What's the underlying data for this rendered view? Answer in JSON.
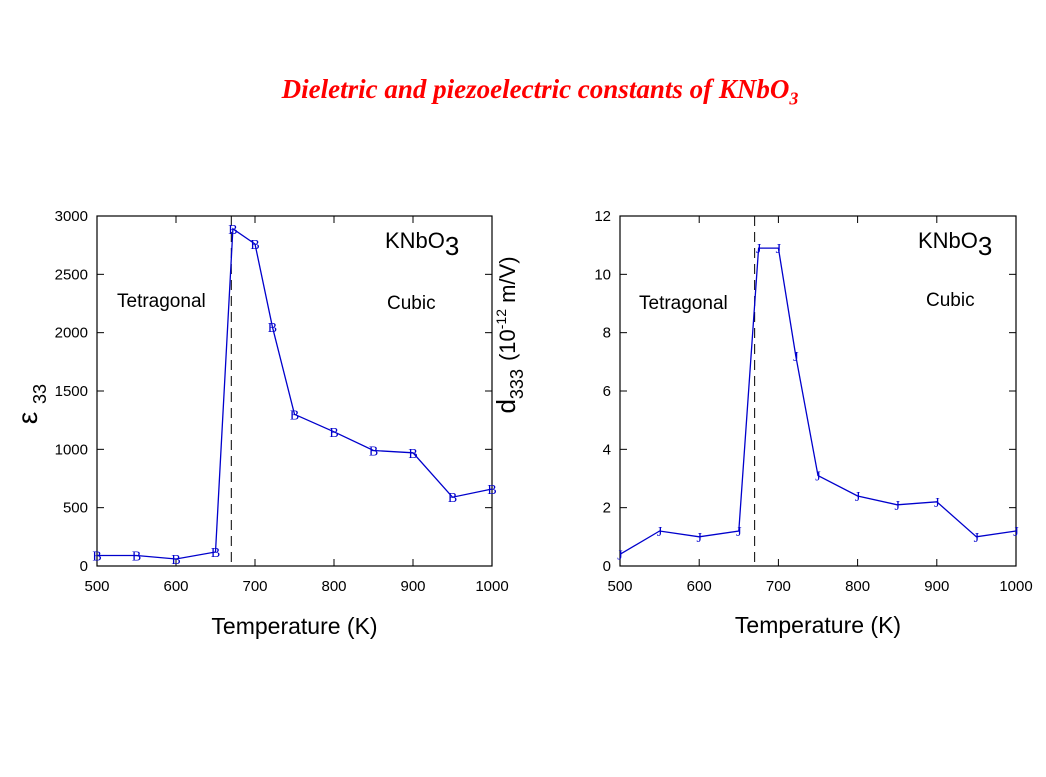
{
  "title": {
    "text": "Dieletric and piezoelectric constants of KNbO",
    "subscript": "3"
  },
  "colors": {
    "title": "#ff0000",
    "series": "#0000cc",
    "axis": "#000000"
  },
  "chart_data": [
    {
      "type": "line",
      "xlabel": "Temperature (K)",
      "ylabel": {
        "symbol": "ε",
        "subscript": "33"
      },
      "xlim": [
        500,
        1000
      ],
      "ylim": [
        0,
        3000
      ],
      "xticks": [
        500,
        600,
        700,
        800,
        900,
        1000
      ],
      "yticks": [
        0,
        500,
        1000,
        1500,
        2000,
        2500,
        3000
      ],
      "grid": false,
      "marker": "B",
      "x": [
        500,
        550,
        600,
        650,
        672,
        700,
        722,
        750,
        800,
        850,
        900,
        950,
        1000
      ],
      "y": [
        90,
        90,
        60,
        120,
        2890,
        2760,
        2050,
        1300,
        1150,
        990,
        970,
        590,
        660
      ],
      "phase_boundary": 670,
      "annotations": {
        "compound": "KNbO",
        "compound_sub": "3",
        "low_phase": "Tetragonal",
        "high_phase": "Cubic"
      }
    },
    {
      "type": "line",
      "xlabel": "Temperature (K)",
      "ylabel": {
        "symbol": "d",
        "subscript": "333",
        "unit": "(10",
        "unit_sup": "-12",
        "unit_rest": " m/V)"
      },
      "xlim": [
        500,
        1000
      ],
      "ylim": [
        0,
        12
      ],
      "xticks": [
        500,
        600,
        700,
        800,
        900,
        1000
      ],
      "yticks": [
        0,
        2,
        4,
        6,
        8,
        10,
        12
      ],
      "grid": false,
      "marker": "J",
      "x": [
        500,
        550,
        600,
        650,
        675,
        700,
        722,
        750,
        800,
        850,
        900,
        950,
        1000
      ],
      "y": [
        0.4,
        1.2,
        1.0,
        1.2,
        10.9,
        10.9,
        7.2,
        3.1,
        2.4,
        2.1,
        2.2,
        1.0,
        1.2
      ],
      "phase_boundary": 670,
      "annotations": {
        "compound": "KNbO",
        "compound_sub": "3",
        "low_phase": "Tetragonal",
        "high_phase": "Cubic"
      }
    }
  ]
}
